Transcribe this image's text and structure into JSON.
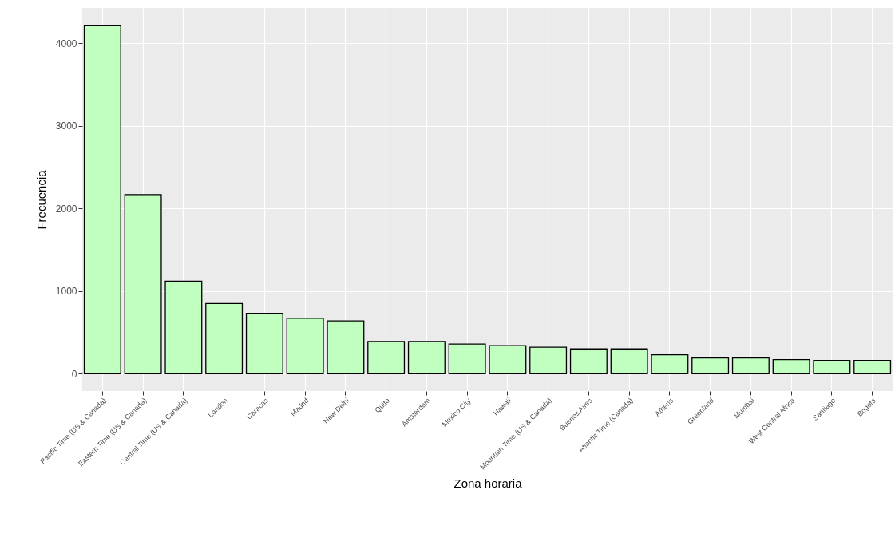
{
  "chart_data": {
    "type": "bar",
    "xlabel": "Zona horaria",
    "ylabel": "Frecuencia",
    "categories": [
      "Pacific Time (US & Canada)",
      "Eastern Time (US & Canada)",
      "Central Time (US & Canada)",
      "London",
      "Caracas",
      "Madrid",
      "New Delhi",
      "Quito",
      "Amsterdam",
      "Mexico City",
      "Hawaii",
      "Mountain Time (US & Canada)",
      "Buenos Aires",
      "Atlantic Time (Canada)",
      "Athens",
      "Greenland",
      "Mumbai",
      "West Central Africa",
      "Santiago",
      "Bogota"
    ],
    "values": [
      4220,
      2170,
      1120,
      850,
      730,
      670,
      640,
      390,
      390,
      360,
      340,
      320,
      300,
      300,
      230,
      190,
      190,
      170,
      160,
      160
    ],
    "color": "#c1ffc1",
    "ylim": [
      -210,
      4430
    ],
    "yticks": [
      0,
      1000,
      2000,
      3000,
      4000
    ],
    "grid": true
  }
}
